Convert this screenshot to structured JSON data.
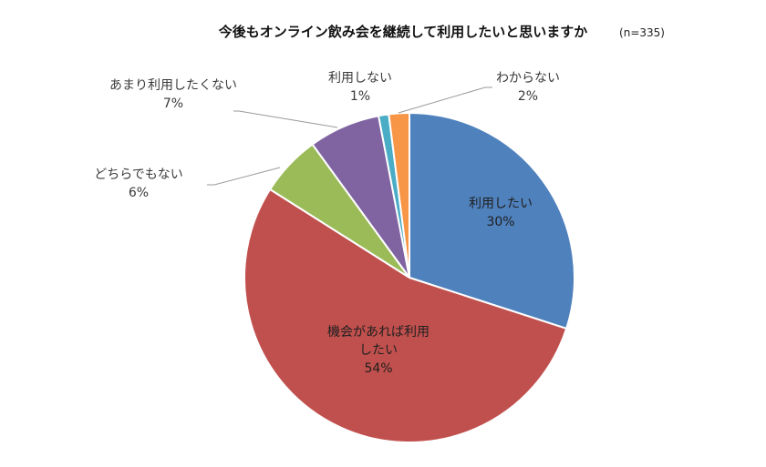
{
  "chart_data": {
    "type": "pie",
    "title": "今後もオンライン飲み会を継続して利用したいと思いますか",
    "note": "(n=335)",
    "slices": [
      {
        "label": [
          "利用したい"
        ],
        "value_label": "30%",
        "value": 30,
        "color": "#4f81bd"
      },
      {
        "label": [
          "機会があれば利用",
          "したい"
        ],
        "value_label": "54%",
        "value": 54,
        "color": "#c0504d"
      },
      {
        "label": [
          "どちらでもない"
        ],
        "value_label": "6%",
        "value": 6,
        "color": "#9bbb59"
      },
      {
        "label": [
          "あまり利用したくない"
        ],
        "value_label": "7%",
        "value": 7,
        "color": "#8064a2"
      },
      {
        "label": [
          "利用しない"
        ],
        "value_label": "1%",
        "value": 1,
        "color": "#4bacc6"
      },
      {
        "label": [
          "わからない"
        ],
        "value_label": "2%",
        "value": 2,
        "color": "#f79646"
      }
    ]
  }
}
